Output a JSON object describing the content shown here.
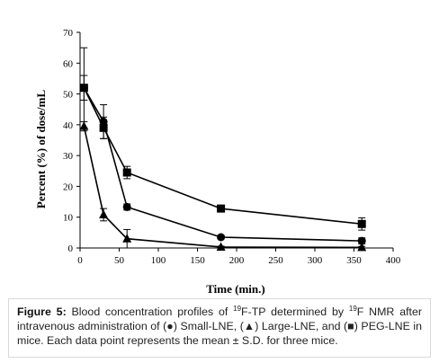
{
  "chart_data": {
    "type": "line",
    "xlabel": "Time (min.)",
    "ylabel": "Percent (%) of dose/mL",
    "xlim": [
      0,
      400
    ],
    "ylim": [
      0,
      70
    ],
    "x_ticks": [
      "0",
      "50",
      "100",
      "150",
      "200",
      "250",
      "300",
      "350",
      "400"
    ],
    "y_ticks": [
      "0",
      "10",
      "20",
      "30",
      "40",
      "50",
      "60",
      "70"
    ],
    "grid": false,
    "legend": "none (identified in caption)",
    "series": [
      {
        "marker": "circle",
        "color": "#000000",
        "x": [
          5,
          30,
          60,
          180,
          360
        ],
        "y": [
          52,
          41,
          13.3,
          3.5,
          2.3
        ],
        "err": [
          13,
          5.5,
          1,
          0.6,
          1
        ]
      },
      {
        "marker": "triangle",
        "color": "#000000",
        "x": [
          5,
          30,
          60,
          180,
          360
        ],
        "y": [
          39.5,
          10.8,
          3,
          0.3,
          0.2
        ],
        "err": [
          1.5,
          2,
          3,
          0.3,
          0.3
        ]
      },
      {
        "marker": "square",
        "color": "#000000",
        "x": [
          5,
          30,
          60,
          180,
          360
        ],
        "y": [
          52,
          39,
          24.5,
          12.8,
          7.8
        ],
        "err": [
          4,
          3.5,
          2,
          0.8,
          2
        ]
      }
    ]
  },
  "caption": {
    "label": "Figure 5:",
    "part1": " Blood concentration profiles of ",
    "sup1": "19",
    "part2": "F-TP determined by ",
    "sup2": "19",
    "part3": "F NMR after intravenous administration of (●) Small-LNE, (▲) Large-LNE, and (■) PEG-LNE in mice. Each data point represents the mean ± S.D. for three mice."
  }
}
